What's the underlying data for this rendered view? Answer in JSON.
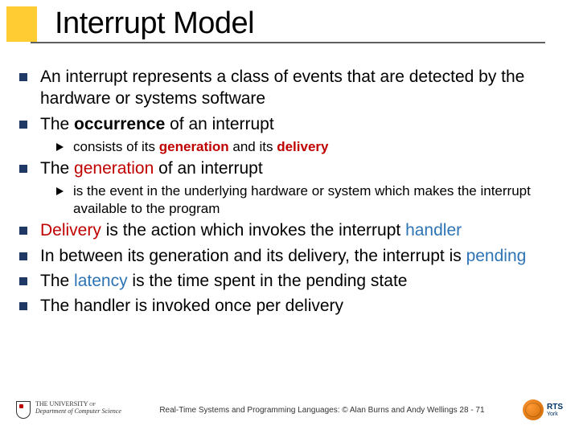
{
  "accent_color": "#ffcc33",
  "rule_color": "#5f5f5f",
  "bullet_color": "#1f3864",
  "red_color": "#c00000",
  "blue_color": "#2e74b5",
  "title": "Interrupt Model",
  "b1": "An interrupt represents a class of events that are detected by the hardware or systems software",
  "b2_a": "The ",
  "b2_b": "occurrence",
  "b2_c": " of an interrupt",
  "b2s1_a": "consists of its ",
  "b2s1_b": "generation",
  "b2s1_c": " and its ",
  "b2s1_d": "delivery",
  "b3_a": "The ",
  "b3_b": "generation",
  "b3_c": " of an interrupt",
  "b3s1": "is the event in the underlying hardware or system which makes the interrupt available to the program",
  "b4_a": "Delivery",
  "b4_b": " is the action which invokes the interrupt ",
  "b4_c": "handler",
  "b5_a": "In between its generation and its delivery, the interrupt is ",
  "b5_b": "pending",
  "b6_a": "The ",
  "b6_b": "latency",
  "b6_c": " is the time spent in the pending state",
  "b7": "The handler is invoked once per delivery",
  "footer_text": "Real-Time Systems and Programming Languages: © Alan Burns and Andy Wellings  28 - 71",
  "uni_line1": "THE UNIVERSITY of",
  "uni_line2": "Department of Computer Science",
  "rts_main": "RTS",
  "rts_sub": "York"
}
